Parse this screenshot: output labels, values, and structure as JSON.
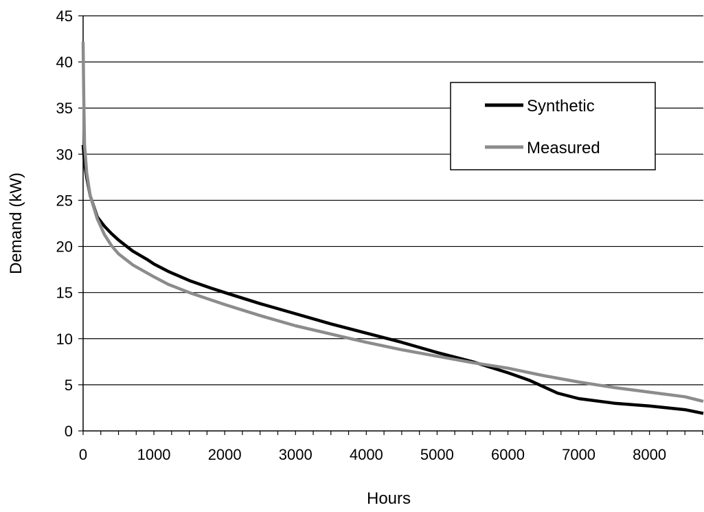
{
  "chart_data": {
    "type": "line",
    "title": "",
    "xlabel": "Hours",
    "ylabel": "Demand (kW)",
    "xlim": [
      0,
      8760
    ],
    "ylim": [
      0,
      45
    ],
    "x_ticks": [
      0,
      1000,
      2000,
      3000,
      4000,
      5000,
      6000,
      7000,
      8000
    ],
    "y_ticks": [
      0,
      5,
      10,
      15,
      20,
      25,
      30,
      35,
      40,
      45
    ],
    "x_minor_step": 250,
    "grid": "horizontal",
    "legend_position": "top-right",
    "series": [
      {
        "name": "Synthetic",
        "color": "#000000",
        "points": [
          [
            0,
            31
          ],
          [
            20,
            29
          ],
          [
            50,
            27.5
          ],
          [
            100,
            25.5
          ],
          [
            200,
            23.2
          ],
          [
            300,
            22.2
          ],
          [
            400,
            21.4
          ],
          [
            500,
            20.7
          ],
          [
            700,
            19.5
          ],
          [
            900,
            18.6
          ],
          [
            1000,
            18.1
          ],
          [
            1200,
            17.3
          ],
          [
            1500,
            16.3
          ],
          [
            1800,
            15.5
          ],
          [
            2000,
            15.0
          ],
          [
            2500,
            13.8
          ],
          [
            3000,
            12.7
          ],
          [
            3500,
            11.6
          ],
          [
            4000,
            10.6
          ],
          [
            4500,
            9.6
          ],
          [
            5000,
            8.5
          ],
          [
            5500,
            7.5
          ],
          [
            6000,
            6.3
          ],
          [
            6300,
            5.5
          ],
          [
            6500,
            4.8
          ],
          [
            6700,
            4.1
          ],
          [
            7000,
            3.5
          ],
          [
            7500,
            3.0
          ],
          [
            8000,
            2.7
          ],
          [
            8500,
            2.3
          ],
          [
            8760,
            1.9
          ]
        ]
      },
      {
        "name": "Measured",
        "color": "#8c8c8c",
        "points": [
          [
            0,
            42.2
          ],
          [
            10,
            36
          ],
          [
            20,
            31
          ],
          [
            50,
            28
          ],
          [
            100,
            25.5
          ],
          [
            200,
            23.0
          ],
          [
            300,
            21.3
          ],
          [
            400,
            20.1
          ],
          [
            500,
            19.2
          ],
          [
            700,
            18.0
          ],
          [
            1000,
            16.7
          ],
          [
            1200,
            15.9
          ],
          [
            1500,
            15.0
          ],
          [
            2000,
            13.7
          ],
          [
            2500,
            12.5
          ],
          [
            3000,
            11.4
          ],
          [
            3500,
            10.5
          ],
          [
            4000,
            9.6
          ],
          [
            4500,
            8.8
          ],
          [
            5000,
            8.1
          ],
          [
            5500,
            7.4
          ],
          [
            6000,
            6.8
          ],
          [
            6500,
            6.0
          ],
          [
            7000,
            5.3
          ],
          [
            7500,
            4.7
          ],
          [
            8000,
            4.2
          ],
          [
            8500,
            3.7
          ],
          [
            8760,
            3.2
          ]
        ]
      }
    ]
  }
}
